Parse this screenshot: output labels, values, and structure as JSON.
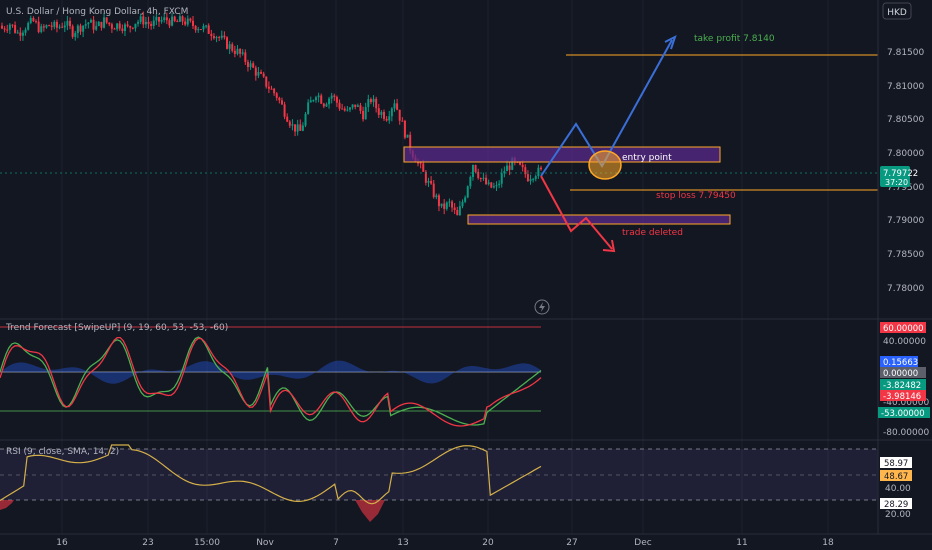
{
  "header": {
    "symbol_title": "U.S. Dollar / Hong Kong Dollar, 4h, FXCM",
    "currency_button": "HKD"
  },
  "price_pane": {
    "y_ticks": [
      "7.81500",
      "7.81000",
      "7.80500",
      "7.80000",
      "7.79500",
      "7.79000",
      "7.78500",
      "7.78000"
    ],
    "current_price": "7.79722",
    "countdown": "37:20",
    "annotations": {
      "take_profit": "take profit 7.8140",
      "entry_point": "entry point",
      "stop_loss": "stop loss 7.79450",
      "trade_deleted": "trade deleted"
    }
  },
  "trend_pane": {
    "title": "Trend Forecast [SwipeUP] (9, 19, 60, 53, -53, -60)",
    "y_ticks": [
      "40.00000",
      "-40.00000",
      "-80.00000"
    ],
    "badges": [
      {
        "text": "60.00000",
        "color": "#f23645"
      },
      {
        "text": "0.15663",
        "color": "#2962ff"
      },
      {
        "text": "0.00000",
        "color": "#5d606b"
      },
      {
        "text": "-3.82482",
        "color": "#089981"
      },
      {
        "text": "-3.98146",
        "color": "#f23645"
      },
      {
        "text": "-53.00000",
        "color": "#089981"
      }
    ]
  },
  "rsi_pane": {
    "title": "RSI (9, close, SMA, 14, 2)",
    "y_ticks": [
      "40.00",
      "20.00"
    ],
    "badges": [
      {
        "text": "58.97",
        "color": "#ffffff",
        "fg": "#131722"
      },
      {
        "text": "48.67",
        "color": "#ffb74d",
        "fg": "#131722"
      },
      {
        "text": "28.29",
        "color": "#ffffff",
        "fg": "#131722"
      }
    ]
  },
  "x_axis": {
    "labels": [
      "16",
      "23",
      "15:00",
      "Nov",
      "7",
      "13",
      "20",
      "27",
      "Dec",
      "11",
      "18"
    ]
  },
  "colors": {
    "background": "#131722",
    "up_candle": "#089981",
    "down_candle": "#f23645",
    "zone_fill": "#5a2a8a",
    "zone_border": "#ffa726",
    "path_blue": "#3a6fd8",
    "path_red": "#f23645",
    "take_profit_text": "#4caf50",
    "rsi_line": "#d4b04a",
    "rsi_band": "#7e57c2"
  },
  "chart_data": {
    "type": "candlestick",
    "symbol": "USD/HKD",
    "interval": "4h",
    "price_range": [
      7.777,
      7.8195
    ],
    "current_price": 7.79722,
    "levels": {
      "take_profit": 7.814,
      "stop_loss": 7.7945,
      "entry_zone": [
        7.7987,
        7.8009
      ],
      "lower_zone": [
        7.7897,
        7.791
      ]
    },
    "close_series": [
      7.8185,
      7.8192,
      7.8178,
      7.8188,
      7.8195,
      7.8182,
      7.819,
      7.8186,
      7.8193,
      7.818,
      7.8188,
      7.8194,
      7.8186,
      7.8196,
      7.8189,
      7.8191,
      7.8185,
      7.8195,
      7.8197,
      7.819,
      7.8196,
      7.8198,
      7.8193,
      7.8197,
      7.8191,
      7.8188,
      7.8183,
      7.8178,
      7.8168,
      7.8158,
      7.815,
      7.8138,
      7.8125,
      7.8112,
      7.8098,
      7.8085,
      7.8062,
      7.804,
      7.8032,
      7.8068,
      7.809,
      7.8075,
      7.8086,
      7.807,
      7.806,
      7.8072,
      7.8058,
      7.808,
      7.8062,
      7.8055,
      7.8078,
      7.8042,
      7.8008,
      7.7985,
      7.7962,
      7.794,
      7.7918,
      7.7925,
      7.7905,
      7.794,
      7.7985,
      7.7962,
      7.795,
      7.7948,
      7.7975,
      7.7985,
      7.7978,
      7.7965,
      7.7972
    ],
    "trend_forecast": {
      "upper_level": 60,
      "zero_level": 0,
      "lower_level": -53,
      "last_values": [
        0.15663,
        -3.82482,
        -3.98146
      ]
    },
    "rsi": {
      "levels": [
        58.97,
        48.67,
        28.29
      ],
      "ticks": [
        40,
        20
      ]
    }
  }
}
